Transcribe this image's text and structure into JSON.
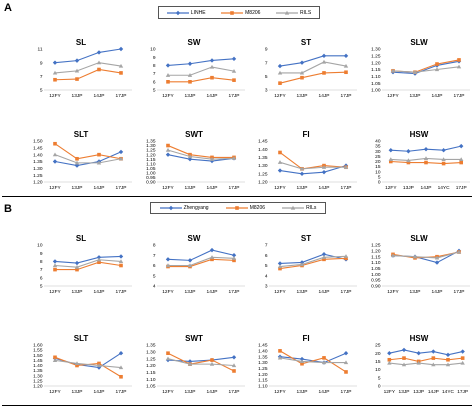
{
  "sections": [
    {
      "label": "A",
      "legend": [
        {
          "name": "LINHE",
          "color": "#4472c4",
          "marker": "diamond"
        },
        {
          "name": "M8206",
          "color": "#ed7d31",
          "marker": "square"
        },
        {
          "name": "RILS",
          "color": "#a5a5a5",
          "marker": "triangle"
        }
      ]
    },
    {
      "label": "B",
      "legend": [
        {
          "name": "Zhengyang",
          "color": "#4472c4",
          "marker": "diamond"
        },
        {
          "name": "M8206",
          "color": "#ed7d31",
          "marker": "square"
        },
        {
          "name": "RILs",
          "color": "#a5a5a5",
          "marker": "triangle"
        }
      ]
    }
  ],
  "chart_data": [
    {
      "title": "SL",
      "type": "line",
      "categories": [
        "12FY",
        "13JP",
        "14JP",
        "17JP"
      ],
      "ylim": [
        5,
        11
      ],
      "yticks": [
        5,
        7,
        9,
        11
      ],
      "decimals": 0,
      "series": [
        {
          "values": [
            9,
            9.3,
            10.5,
            11
          ]
        },
        {
          "values": [
            6.5,
            6.6,
            8,
            7.5
          ]
        },
        {
          "values": [
            7.5,
            7.8,
            9,
            8.5
          ]
        }
      ]
    },
    {
      "title": "SW",
      "type": "line",
      "categories": [
        "12FY",
        "13JP",
        "14JP",
        "17JP"
      ],
      "ylim": [
        5,
        10
      ],
      "yticks": [
        5,
        6,
        7,
        8,
        9,
        10
      ],
      "decimals": 0,
      "series": [
        {
          "values": [
            8,
            8.2,
            8.6,
            8.8
          ]
        },
        {
          "values": [
            6,
            6,
            6.5,
            6.2
          ]
        },
        {
          "values": [
            6.8,
            6.8,
            7.8,
            7.3
          ]
        }
      ]
    },
    {
      "title": "ST",
      "type": "line",
      "categories": [
        "12FY",
        "13JP",
        "14JP",
        "17JP"
      ],
      "ylim": [
        3,
        9
      ],
      "yticks": [
        3,
        5,
        7,
        9
      ],
      "decimals": 0,
      "series": [
        {
          "values": [
            6.5,
            7,
            8,
            8
          ]
        },
        {
          "values": [
            4,
            4.8,
            5.5,
            5.6
          ]
        },
        {
          "values": [
            5.5,
            5.5,
            7.1,
            6.5
          ]
        }
      ]
    },
    {
      "title": "SLW",
      "type": "line",
      "categories": [
        "12FY",
        "13JP",
        "14JP",
        "17JP"
      ],
      "ylim": [
        1.0,
        1.3
      ],
      "yticks": [
        1.0,
        1.05,
        1.1,
        1.15,
        1.2,
        1.25,
        1.3
      ],
      "decimals": 2,
      "series": [
        {
          "values": [
            1.13,
            1.12,
            1.18,
            1.21
          ]
        },
        {
          "values": [
            1.14,
            1.13,
            1.19,
            1.22
          ]
        },
        {
          "values": [
            1.14,
            1.13,
            1.15,
            1.17
          ]
        }
      ]
    },
    {
      "title": "SLT",
      "type": "line",
      "categories": [
        "12FY",
        "13JP",
        "14JP",
        "17JP"
      ],
      "ylim": [
        1.2,
        1.5
      ],
      "yticks": [
        1.2,
        1.25,
        1.3,
        1.35,
        1.4,
        1.45,
        1.5
      ],
      "decimals": 2,
      "series": [
        {
          "values": [
            1.35,
            1.32,
            1.35,
            1.42
          ]
        },
        {
          "values": [
            1.48,
            1.37,
            1.4,
            1.37
          ]
        },
        {
          "values": [
            1.4,
            1.34,
            1.34,
            1.37
          ]
        }
      ]
    },
    {
      "title": "SWT",
      "type": "line",
      "categories": [
        "12FY",
        "13JP",
        "14JP",
        "17JP"
      ],
      "ylim": [
        0.9,
        1.35
      ],
      "yticks": [
        0.9,
        0.95,
        1.0,
        1.05,
        1.1,
        1.15,
        1.2,
        1.25,
        1.3,
        1.35
      ],
      "decimals": 2,
      "series": [
        {
          "values": [
            1.2,
            1.15,
            1.13,
            1.16
          ]
        },
        {
          "values": [
            1.3,
            1.2,
            1.17,
            1.17
          ]
        },
        {
          "values": [
            1.25,
            1.18,
            1.15,
            1.16
          ]
        }
      ]
    },
    {
      "title": "FI",
      "type": "line",
      "categories": [
        "12FY",
        "13JP",
        "14JP",
        "17JP"
      ],
      "ylim": [
        1.2,
        1.45
      ],
      "yticks": [
        1.2,
        1.25,
        1.3,
        1.35,
        1.4,
        1.45
      ],
      "decimals": 2,
      "series": [
        {
          "values": [
            1.27,
            1.25,
            1.26,
            1.3
          ]
        },
        {
          "values": [
            1.38,
            1.28,
            1.3,
            1.29
          ]
        },
        {
          "values": [
            1.32,
            1.28,
            1.29,
            1.29
          ]
        }
      ]
    },
    {
      "title": "HSW",
      "type": "line",
      "categories": [
        "12FY",
        "13JP",
        "14JP",
        "14YC",
        "17JP"
      ],
      "ylim": [
        0,
        40
      ],
      "yticks": [
        0,
        5,
        10,
        15,
        20,
        25,
        30,
        35,
        40
      ],
      "decimals": 0,
      "series": [
        {
          "values": [
            31,
            30,
            32,
            31,
            35
          ]
        },
        {
          "values": [
            20,
            19,
            19,
            18,
            19
          ]
        },
        {
          "values": [
            22,
            21,
            23,
            22,
            22
          ]
        }
      ]
    },
    {
      "title": "SL",
      "type": "line",
      "categories": [
        "12FY",
        "13JP",
        "14JP",
        "17JP"
      ],
      "ylim": [
        5,
        10
      ],
      "yticks": [
        5,
        6,
        7,
        8,
        9,
        10
      ],
      "decimals": 0,
      "series": [
        {
          "values": [
            8,
            7.8,
            8.5,
            8.6
          ]
        },
        {
          "values": [
            7,
            7,
            7.9,
            7.5
          ]
        },
        {
          "values": [
            7.5,
            7.3,
            8.2,
            8
          ]
        }
      ]
    },
    {
      "title": "SW",
      "type": "line",
      "categories": [
        "12FY",
        "13JP",
        "14JP",
        "17JP"
      ],
      "ylim": [
        4,
        8
      ],
      "yticks": [
        4,
        5,
        6,
        7,
        8
      ],
      "decimals": 0,
      "series": [
        {
          "values": [
            6.6,
            6.5,
            7.5,
            7
          ]
        },
        {
          "values": [
            5.9,
            5.9,
            6.6,
            6.5
          ]
        },
        {
          "values": [
            6,
            6,
            6.8,
            6.7
          ]
        }
      ]
    },
    {
      "title": "ST",
      "type": "line",
      "categories": [
        "12FY",
        "13JP",
        "14JP",
        "17JP"
      ],
      "ylim": [
        3,
        7
      ],
      "yticks": [
        3,
        4,
        5,
        6,
        7
      ],
      "decimals": 0,
      "series": [
        {
          "values": [
            5.2,
            5.3,
            6.1,
            5.6
          ]
        },
        {
          "values": [
            4.7,
            5,
            5.6,
            5.7
          ]
        },
        {
          "values": [
            4.9,
            5.1,
            5.8,
            5.9
          ]
        }
      ]
    },
    {
      "title": "SLW",
      "type": "line",
      "categories": [
        "12FY",
        "13JP",
        "14JP",
        "17JP"
      ],
      "ylim": [
        0.9,
        1.25
      ],
      "yticks": [
        0.9,
        0.95,
        1.0,
        1.05,
        1.1,
        1.15,
        1.2,
        1.25
      ],
      "decimals": 2,
      "series": [
        {
          "values": [
            1.16,
            1.15,
            1.1,
            1.2
          ]
        },
        {
          "values": [
            1.17,
            1.14,
            1.15,
            1.19
          ]
        },
        {
          "values": [
            1.16,
            1.15,
            1.14,
            1.19
          ]
        }
      ]
    },
    {
      "title": "SLT",
      "type": "line",
      "categories": [
        "12FY",
        "13JP",
        "14JP",
        "17JP"
      ],
      "ylim": [
        1.2,
        1.6
      ],
      "yticks": [
        1.2,
        1.25,
        1.3,
        1.35,
        1.4,
        1.45,
        1.5,
        1.55,
        1.6
      ],
      "decimals": 2,
      "series": [
        {
          "values": [
            1.47,
            1.41,
            1.38,
            1.52
          ]
        },
        {
          "values": [
            1.48,
            1.4,
            1.42,
            1.29
          ]
        },
        {
          "values": [
            1.45,
            1.42,
            1.4,
            1.38
          ]
        }
      ]
    },
    {
      "title": "SWT",
      "type": "line",
      "categories": [
        "12FY",
        "13JP",
        "14JP",
        "17JP"
      ],
      "ylim": [
        1.05,
        1.35
      ],
      "yticks": [
        1.05,
        1.1,
        1.15,
        1.2,
        1.25,
        1.3,
        1.35
      ],
      "decimals": 2,
      "series": [
        {
          "values": [
            1.24,
            1.23,
            1.24,
            1.26
          ]
        },
        {
          "values": [
            1.29,
            1.21,
            1.24,
            1.16
          ]
        },
        {
          "values": [
            1.25,
            1.21,
            1.21,
            1.2
          ]
        }
      ]
    },
    {
      "title": "FI",
      "type": "line",
      "categories": [
        "12FY",
        "13JP",
        "14JP",
        "17JP"
      ],
      "ylim": [
        1.1,
        1.45
      ],
      "yticks": [
        1.1,
        1.15,
        1.2,
        1.25,
        1.3,
        1.35,
        1.4,
        1.45
      ],
      "decimals": 2,
      "series": [
        {
          "values": [
            1.35,
            1.33,
            1.3,
            1.38
          ]
        },
        {
          "values": [
            1.4,
            1.29,
            1.34,
            1.22
          ]
        },
        {
          "values": [
            1.34,
            1.31,
            1.3,
            1.3
          ]
        }
      ]
    },
    {
      "title": "HSW",
      "type": "line",
      "categories": [
        "12FY",
        "13JP",
        "13JP",
        "14JP",
        "14YC",
        "17JP"
      ],
      "ylim": [
        0,
        25
      ],
      "yticks": [
        0,
        5,
        10,
        15,
        20,
        25
      ],
      "decimals": 0,
      "series": [
        {
          "values": [
            20,
            22,
            20,
            21,
            19,
            21
          ]
        },
        {
          "values": [
            16,
            17,
            15,
            17,
            16,
            17
          ]
        },
        {
          "values": [
            14,
            13,
            14,
            13,
            13,
            14
          ]
        }
      ]
    }
  ]
}
